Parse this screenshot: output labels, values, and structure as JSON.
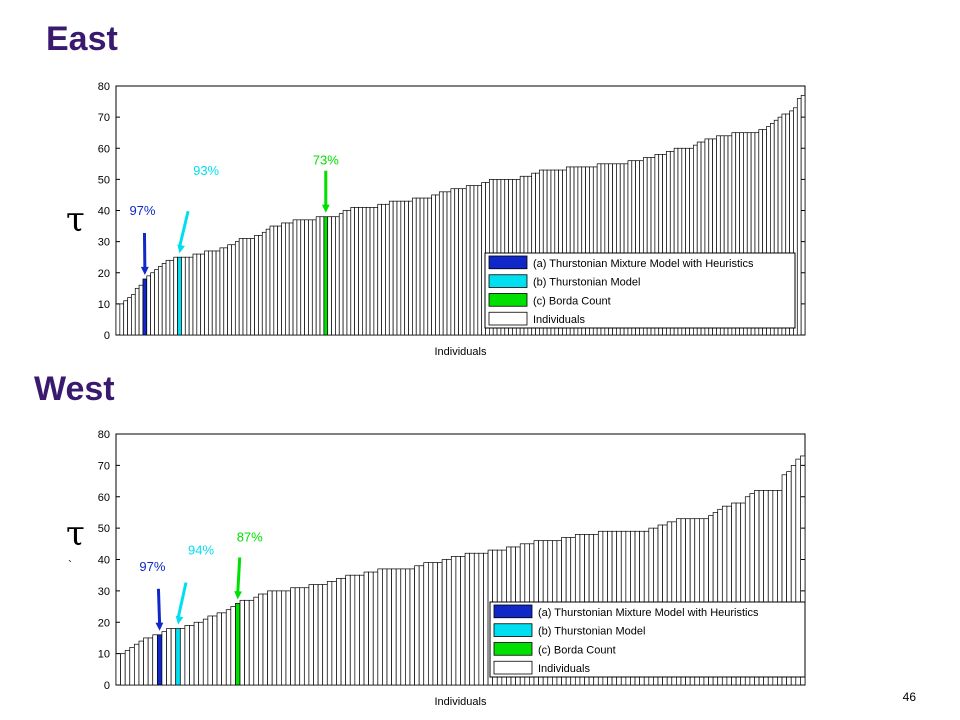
{
  "page": {
    "number": "46",
    "stray_mark": "`"
  },
  "chart_data": [
    {
      "name": "east",
      "type": "bar",
      "title": "East",
      "xlabel": "Individuals",
      "ylabel": "τ",
      "ylim": [
        0,
        80
      ],
      "yticks": [
        0,
        10,
        20,
        30,
        40,
        50,
        60,
        70,
        80
      ],
      "grid": false,
      "legend_position": "bottom-right",
      "legend": [
        {
          "label": "(a) Thurstonian Mixture Model with Heuristics",
          "color": "#1028c8"
        },
        {
          "label": "(b) Thurstonian Model",
          "color": "#00dfef"
        },
        {
          "label": "(c) Borda Count",
          "color": "#00e000"
        },
        {
          "label": "Individuals",
          "color": "#ffffff"
        }
      ],
      "values": [
        10,
        10,
        11,
        12,
        13,
        15,
        16,
        18,
        19,
        20,
        21,
        22,
        23,
        24,
        24,
        25,
        25,
        25,
        25,
        25,
        26,
        26,
        26,
        27,
        27,
        27,
        27,
        28,
        28,
        29,
        29,
        30,
        31,
        31,
        31,
        31,
        32,
        32,
        33,
        34,
        35,
        35,
        35,
        36,
        36,
        36,
        37,
        37,
        37,
        37,
        37,
        37,
        38,
        38,
        38,
        38,
        38,
        38,
        39,
        40,
        40,
        41,
        41,
        41,
        41,
        41,
        41,
        41,
        42,
        42,
        42,
        43,
        43,
        43,
        43,
        43,
        43,
        44,
        44,
        44,
        44,
        44,
        45,
        45,
        46,
        46,
        46,
        47,
        47,
        47,
        47,
        48,
        48,
        48,
        48,
        49,
        49,
        50,
        50,
        50,
        50,
        50,
        50,
        50,
        50,
        51,
        51,
        51,
        52,
        52,
        53,
        53,
        53,
        53,
        53,
        53,
        53,
        54,
        54,
        54,
        54,
        54,
        54,
        54,
        54,
        55,
        55,
        55,
        55,
        55,
        55,
        55,
        55,
        56,
        56,
        56,
        56,
        57,
        57,
        57,
        58,
        58,
        58,
        59,
        59,
        60,
        60,
        60,
        60,
        60,
        61,
        62,
        62,
        63,
        63,
        63,
        64,
        64,
        64,
        64,
        65,
        65,
        65,
        65,
        65,
        65,
        65,
        66,
        66,
        67,
        68,
        69,
        70,
        71,
        71,
        72,
        73,
        76,
        77
      ],
      "highlights": [
        {
          "series": "(a) Thurstonian Mixture Model with Heuristics",
          "index": 7,
          "value": 18,
          "annotation": "97%",
          "color": "#1028c8"
        },
        {
          "series": "(b) Thurstonian Model",
          "index": 16,
          "value": 25,
          "annotation": "93%",
          "color": "#00dfef"
        },
        {
          "series": "(c) Borda Count",
          "index": 54,
          "value": 38,
          "annotation": "73%",
          "color": "#00e000"
        }
      ]
    },
    {
      "name": "west",
      "type": "bar",
      "title": "West",
      "xlabel": "Individuals",
      "ylabel": "τ",
      "ylim": [
        0,
        80
      ],
      "yticks": [
        0,
        10,
        20,
        30,
        40,
        50,
        60,
        70,
        80
      ],
      "grid": false,
      "legend_position": "bottom-right",
      "legend": [
        {
          "label": "(a) Thurstonian Mixture Model with Heuristics",
          "color": "#1028c8"
        },
        {
          "label": "(b) Thurstonian Model",
          "color": "#00dfef"
        },
        {
          "label": "(c) Borda Count",
          "color": "#00e000"
        },
        {
          "label": "Individuals",
          "color": "#ffffff"
        }
      ],
      "values": [
        10,
        10,
        11,
        12,
        13,
        14,
        15,
        15,
        16,
        16,
        17,
        18,
        18,
        18,
        18,
        19,
        19,
        20,
        20,
        21,
        22,
        22,
        23,
        23,
        24,
        25,
        26,
        27,
        27,
        27,
        28,
        29,
        29,
        30,
        30,
        30,
        30,
        30,
        31,
        31,
        31,
        31,
        32,
        32,
        32,
        32,
        33,
        33,
        34,
        34,
        35,
        35,
        35,
        35,
        36,
        36,
        36,
        37,
        37,
        37,
        37,
        37,
        37,
        37,
        37,
        38,
        38,
        39,
        39,
        39,
        39,
        40,
        40,
        41,
        41,
        41,
        42,
        42,
        42,
        42,
        42,
        43,
        43,
        43,
        43,
        44,
        44,
        44,
        45,
        45,
        45,
        46,
        46,
        46,
        46,
        46,
        46,
        47,
        47,
        47,
        48,
        48,
        48,
        48,
        48,
        49,
        49,
        49,
        49,
        49,
        49,
        49,
        49,
        49,
        49,
        49,
        50,
        50,
        51,
        51,
        52,
        52,
        53,
        53,
        53,
        53,
        53,
        53,
        53,
        54,
        55,
        56,
        57,
        57,
        58,
        58,
        58,
        60,
        61,
        62,
        62,
        62,
        62,
        62,
        62,
        67,
        68,
        70,
        72,
        73
      ],
      "highlights": [
        {
          "series": "(a) Thurstonian Mixture Model with Heuristics",
          "index": 9,
          "value": 16,
          "annotation": "97%",
          "color": "#1028c8"
        },
        {
          "series": "(b) Thurstonian Model",
          "index": 13,
          "value": 18,
          "annotation": "94%",
          "color": "#00dfef"
        },
        {
          "series": "(c) Borda Count",
          "index": 26,
          "value": 26,
          "annotation": "87%",
          "color": "#00e000"
        }
      ]
    }
  ]
}
